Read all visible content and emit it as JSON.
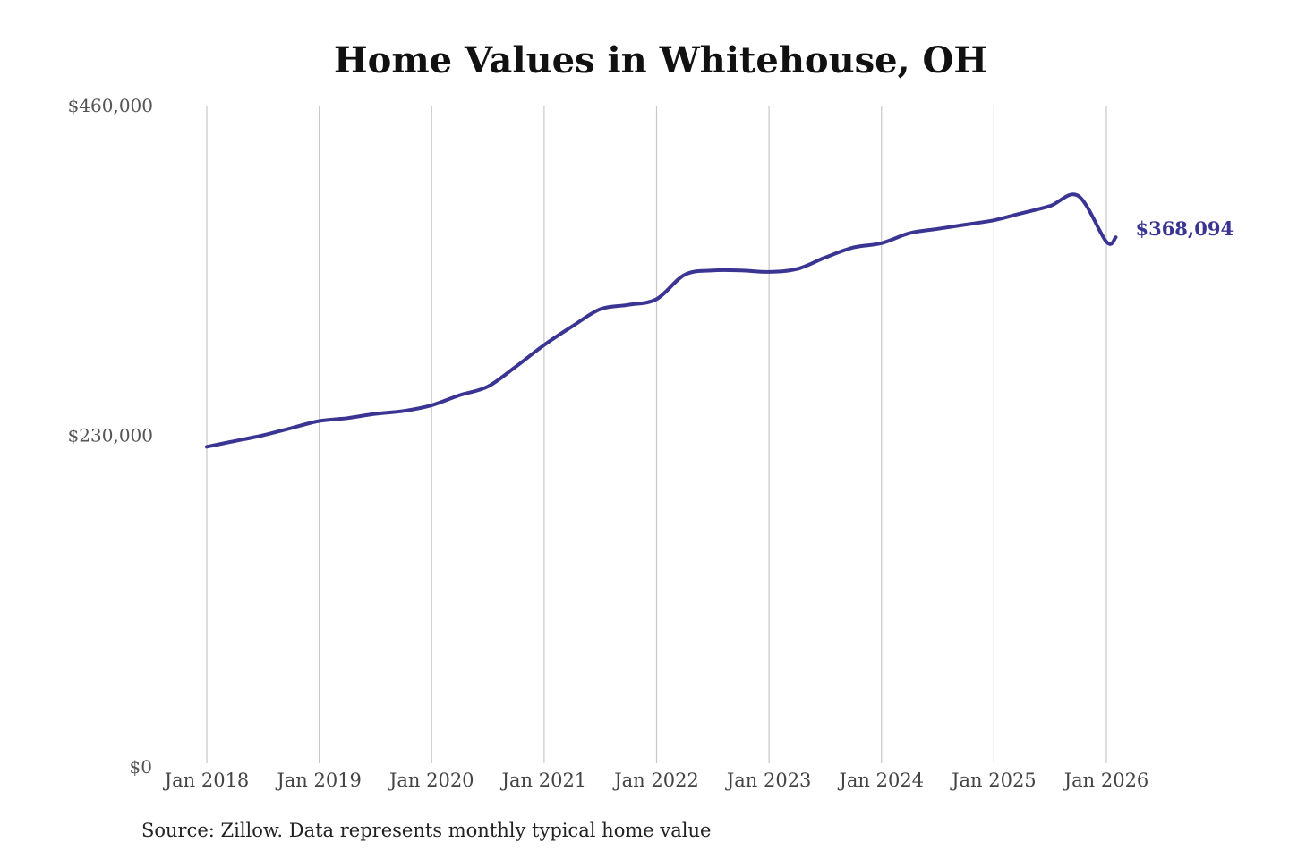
{
  "chart_data": {
    "type": "line",
    "title": "Home Values in Whitehouse, OH",
    "source": "Source: Zillow. Data represents monthly typical home value",
    "xlabel": "",
    "ylabel": "",
    "ylim": [
      0,
      460000
    ],
    "yticks": [
      0,
      230000,
      460000
    ],
    "ytick_labels": [
      "$0",
      "$230,000",
      "$460,000"
    ],
    "xticks": [
      "2018-01",
      "2019-01",
      "2020-01",
      "2021-01",
      "2022-01",
      "2023-01",
      "2024-01",
      "2025-01",
      "2026-01"
    ],
    "xtick_labels": [
      "Jan 2018",
      "Jan 2019",
      "Jan 2020",
      "Jan 2021",
      "Jan 2022",
      "Jan 2023",
      "Jan 2024",
      "Jan 2025",
      "Jan 2026"
    ],
    "xlim": [
      "2018-01",
      "2026-01"
    ],
    "grid": "vertical",
    "line_color": "#3a3592",
    "grid_color": "#c8c8c8",
    "end_label": "$368,094",
    "series": [
      {
        "x": [
          "2018-01",
          "2018-04",
          "2018-07",
          "2018-10",
          "2019-01",
          "2019-04",
          "2019-07",
          "2019-10",
          "2020-01",
          "2020-04",
          "2020-07",
          "2020-10",
          "2021-01",
          "2021-04",
          "2021-07",
          "2021-10",
          "2022-01",
          "2022-04",
          "2022-07",
          "2022-10",
          "2023-01",
          "2023-04",
          "2023-07",
          "2023-10",
          "2024-01",
          "2024-04",
          "2024-07",
          "2024-10",
          "2025-01",
          "2025-04",
          "2025-07",
          "2025-10",
          "2026-01",
          "2026-02"
        ],
        "values": [
          222000,
          226000,
          230000,
          235000,
          240000,
          242000,
          245000,
          247000,
          251000,
          258000,
          264000,
          278000,
          293000,
          306000,
          318000,
          321000,
          325000,
          342000,
          345000,
          345000,
          344000,
          346000,
          354000,
          361000,
          364000,
          371000,
          374000,
          377000,
          380000,
          385000,
          390000,
          397000,
          365000,
          368094
        ]
      }
    ]
  }
}
